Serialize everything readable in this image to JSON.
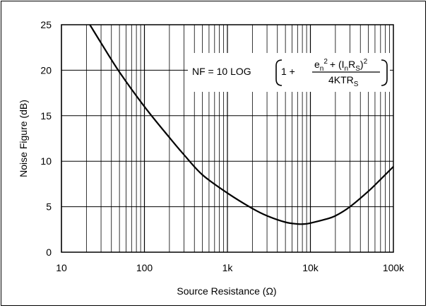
{
  "chart_data": {
    "type": "line",
    "title": "",
    "xlabel": "Source Resistance (Ω)",
    "ylabel": "Noise Figure (dB)",
    "x_scale": "log",
    "xlim": [
      10,
      100000
    ],
    "ylim": [
      0,
      25
    ],
    "x_ticks": [
      10,
      100,
      1000,
      10000,
      100000
    ],
    "x_tick_labels": [
      "10",
      "100",
      "1k",
      "10k",
      "100k"
    ],
    "y_ticks": [
      0,
      5,
      10,
      15,
      20,
      25
    ],
    "y_tick_labels": [
      "0",
      "5",
      "10",
      "15",
      "20",
      "25"
    ],
    "grid": true,
    "series": [
      {
        "name": "",
        "x": [
          22,
          30,
          50,
          100,
          200,
          300,
          500,
          1000,
          2000,
          3000,
          5000,
          7000,
          8500,
          10000,
          15000,
          20000,
          30000,
          50000,
          70000,
          100000
        ],
        "y": [
          25.0,
          23.0,
          19.8,
          16.0,
          12.6,
          10.7,
          8.5,
          6.5,
          4.8,
          4.0,
          3.3,
          3.1,
          3.1,
          3.2,
          3.6,
          4.0,
          5.0,
          6.7,
          8.0,
          9.4
        ]
      }
    ],
    "annotation": {
      "lhs": "NF = 10 LOG",
      "one_plus": "1 +",
      "num_e": "e",
      "num_n_sub": "n",
      "num_sq": "2",
      "num_plus_open": "+ (I",
      "num_n_sub2": "n",
      "num_R": "R",
      "num_S_sub": "S",
      "num_close": ")",
      "num_sq2": "2",
      "den": "4KTR",
      "den_sub": "S"
    }
  }
}
